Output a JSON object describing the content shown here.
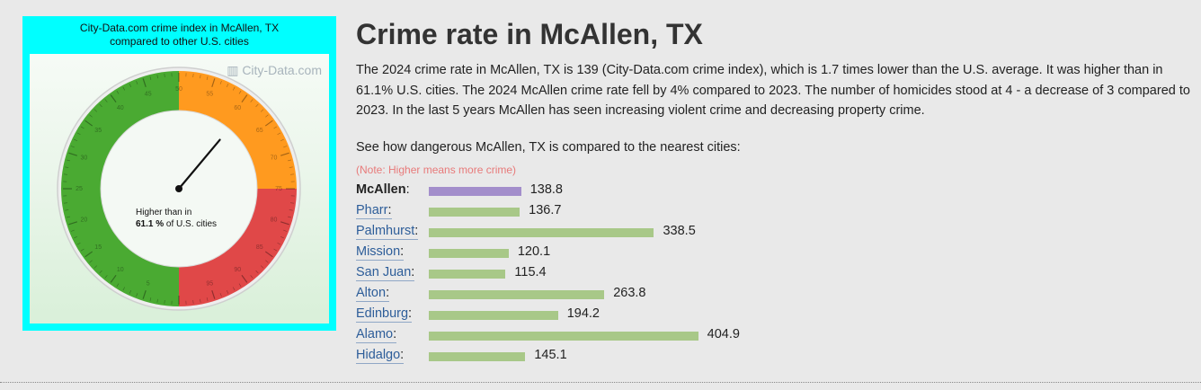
{
  "gauge": {
    "title_line1": "City-Data.com crime index in McAllen, TX",
    "title_line2": "compared to other U.S. cities",
    "watermark": "City-Data.com",
    "caption_line1": "Higher than in",
    "caption_value": "61.1 %",
    "caption_suffix": " of U.S. cities",
    "percentile": 61.1,
    "colors": {
      "green": "#4aaa32",
      "orange": "#ff9a1f",
      "red": "#e04848",
      "frame": "#00ffff"
    }
  },
  "header": {
    "title": "Crime rate in McAllen, TX"
  },
  "description": "The 2024 crime rate in McAllen, TX is 139 (City-Data.com crime index), which is 1.7 times lower than the U.S. average. It was higher than in 61.1% U.S. cities. The 2024 McAllen crime rate fell by 4% compared to 2023. The number of homicides stood at 4 - a decrease of 3 compared to 2023. In the last 5 years McAllen has seen increasing violent crime and decreasing property crime.",
  "comparison": {
    "title": "See how dangerous McAllen, TX is compared to the nearest cities:",
    "note": "(Note: Higher means more crime)",
    "cities": [
      {
        "name": "McAllen",
        "value": 138.8,
        "label": "138.8",
        "current": true
      },
      {
        "name": "Pharr",
        "value": 136.7,
        "label": "136.7"
      },
      {
        "name": "Palmhurst",
        "value": 338.5,
        "label": "338.5"
      },
      {
        "name": "Mission",
        "value": 120.1,
        "label": "120.1"
      },
      {
        "name": "San Juan",
        "value": 115.4,
        "label": "115.4"
      },
      {
        "name": "Alton",
        "value": 263.8,
        "label": "263.8"
      },
      {
        "name": "Edinburg",
        "value": 194.2,
        "label": "194.2"
      },
      {
        "name": "Alamo",
        "value": 404.9,
        "label": "404.9"
      },
      {
        "name": "Hidalgo",
        "value": 145.1,
        "label": "145.1"
      }
    ]
  }
}
